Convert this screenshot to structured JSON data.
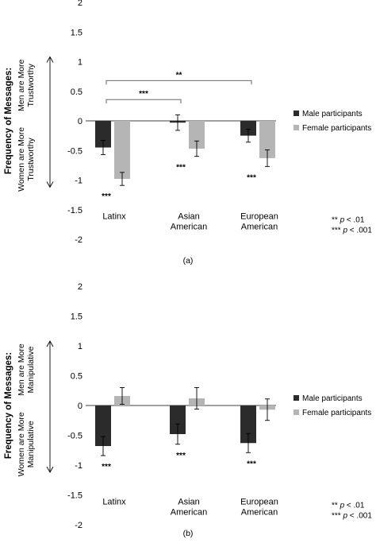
{
  "colors": {
    "male": "#2b2b2b",
    "female": "#b5b5b5",
    "axis": "#000000",
    "bracket": "#555555"
  },
  "chart_data": [
    {
      "panel": "a",
      "type": "bar",
      "title": "",
      "ylabel": "Frequency of Messages:",
      "ylim": [
        -2,
        2
      ],
      "yticks": [
        "2",
        "1.5",
        "1",
        "0.5",
        "0",
        "-0.5",
        "-1",
        "-1.5",
        "-2"
      ],
      "categories": [
        [
          "Latinx"
        ],
        [
          "Asian",
          "American"
        ],
        [
          "European",
          "American"
        ]
      ],
      "series": [
        {
          "name": "Male participants",
          "values": [
            -0.45,
            -0.03,
            -0.25
          ],
          "err": [
            0.12,
            0.13,
            0.11
          ]
        },
        {
          "name": "Female participants",
          "values": [
            -0.98,
            -0.47,
            -0.63
          ],
          "err": [
            0.11,
            0.13,
            0.14
          ]
        }
      ],
      "bar_sig": [
        "***",
        "***",
        "***"
      ],
      "brackets": [
        {
          "from": 0,
          "to": 1,
          "label": "***"
        },
        {
          "from": 0,
          "to": 2,
          "label": "**"
        }
      ],
      "arrow_top": [
        "Men are More",
        "Trustworthy"
      ],
      "arrow_bottom": [
        "Women are More",
        "Trustworthy"
      ],
      "footnotes": [
        {
          "stars": "**",
          "p": "p",
          "rest": " < .01"
        },
        {
          "stars": "***",
          "p": "p",
          "rest": " < .001"
        }
      ],
      "caption": "(a)",
      "legend": "right"
    },
    {
      "panel": "b",
      "type": "bar",
      "title": "",
      "ylabel": "Frequency of Messages:",
      "ylim": [
        -2,
        2
      ],
      "yticks": [
        "2",
        "1.5",
        "1",
        "0.5",
        "0",
        "-0.5",
        "-1",
        "-1.5",
        "-2"
      ],
      "categories": [
        [
          "Latinx"
        ],
        [
          "Asian",
          "American"
        ],
        [
          "European",
          "American"
        ]
      ],
      "series": [
        {
          "name": "Male participants",
          "values": [
            -0.68,
            -0.48,
            -0.63
          ],
          "err": [
            0.16,
            0.17,
            0.16
          ]
        },
        {
          "name": "Female participants",
          "values": [
            0.16,
            0.12,
            -0.07
          ],
          "err": [
            0.14,
            0.18,
            0.18
          ]
        }
      ],
      "bar_sig": [
        "***",
        "***",
        "***"
      ],
      "brackets": [],
      "arrow_top": [
        "Men are More",
        "Manipulative"
      ],
      "arrow_bottom": [
        "Women are More",
        "Manipulative"
      ],
      "footnotes": [
        {
          "stars": "**",
          "p": "p",
          "rest": " < .01"
        },
        {
          "stars": "***",
          "p": "p",
          "rest": " < .001"
        }
      ],
      "caption": "(b)",
      "legend": "right"
    }
  ]
}
